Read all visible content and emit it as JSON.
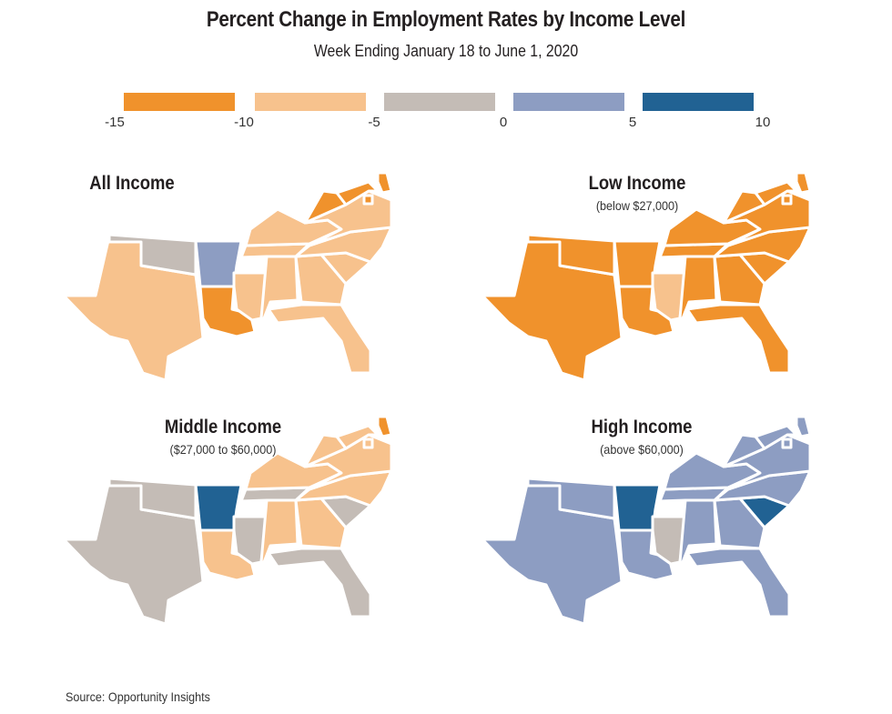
{
  "title": "Percent Change in Employment Rates by Income Level",
  "subtitle": "Week Ending January 18 to June 1, 2020",
  "legend": {
    "ticks": [
      "-15",
      "-10",
      "-5",
      "0",
      "5",
      "10"
    ],
    "bins": [
      {
        "range": [
          -15,
          -10
        ],
        "color": "#f0922c"
      },
      {
        "range": [
          -10,
          -5
        ],
        "color": "#f7c28d"
      },
      {
        "range": [
          -5,
          0
        ],
        "color": "#c4bcb6"
      },
      {
        "range": [
          0,
          5
        ],
        "color": "#8d9dc2"
      },
      {
        "range": [
          5,
          10
        ],
        "color": "#216293"
      }
    ]
  },
  "panels": [
    {
      "title": "All Income",
      "subtitle": "",
      "bins": {
        "TX": 1,
        "OK": 2,
        "AR": 3,
        "LA": 0,
        "MS": 1,
        "AL": 1,
        "GA": 1,
        "FL": 1,
        "SC": 1,
        "NC": 1,
        "TN": 1,
        "KY": 1,
        "VA": 1,
        "WV": 0,
        "MD": 0,
        "DE": 0,
        "DC": 0
      }
    },
    {
      "title": "Low Income",
      "subtitle": "(below $27,000)",
      "bins": {
        "TX": 0,
        "OK": 0,
        "AR": 0,
        "LA": 0,
        "MS": 1,
        "AL": 0,
        "GA": 0,
        "FL": 0,
        "SC": 0,
        "NC": 0,
        "TN": 0,
        "KY": 0,
        "VA": 0,
        "WV": 0,
        "MD": 0,
        "DE": 0,
        "DC": 0
      }
    },
    {
      "title": "Middle Income",
      "subtitle": "($27,000 to $60,000)",
      "bins": {
        "TX": 2,
        "OK": 2,
        "AR": 4,
        "LA": 1,
        "MS": 2,
        "AL": 1,
        "GA": 1,
        "FL": 2,
        "SC": 2,
        "NC": 1,
        "TN": 2,
        "KY": 1,
        "VA": 1,
        "WV": 1,
        "MD": 1,
        "DE": 0,
        "DC": 1
      }
    },
    {
      "title": "High Income",
      "subtitle": "(above $60,000)",
      "bins": {
        "TX": 3,
        "OK": 3,
        "AR": 4,
        "LA": 3,
        "MS": 2,
        "AL": 3,
        "GA": 3,
        "FL": 3,
        "SC": 4,
        "NC": 3,
        "TN": 3,
        "KY": 3,
        "VA": 3,
        "WV": 3,
        "MD": 3,
        "DE": 3,
        "DC": 3
      }
    }
  ],
  "source": "Source: Opportunity Insights"
}
